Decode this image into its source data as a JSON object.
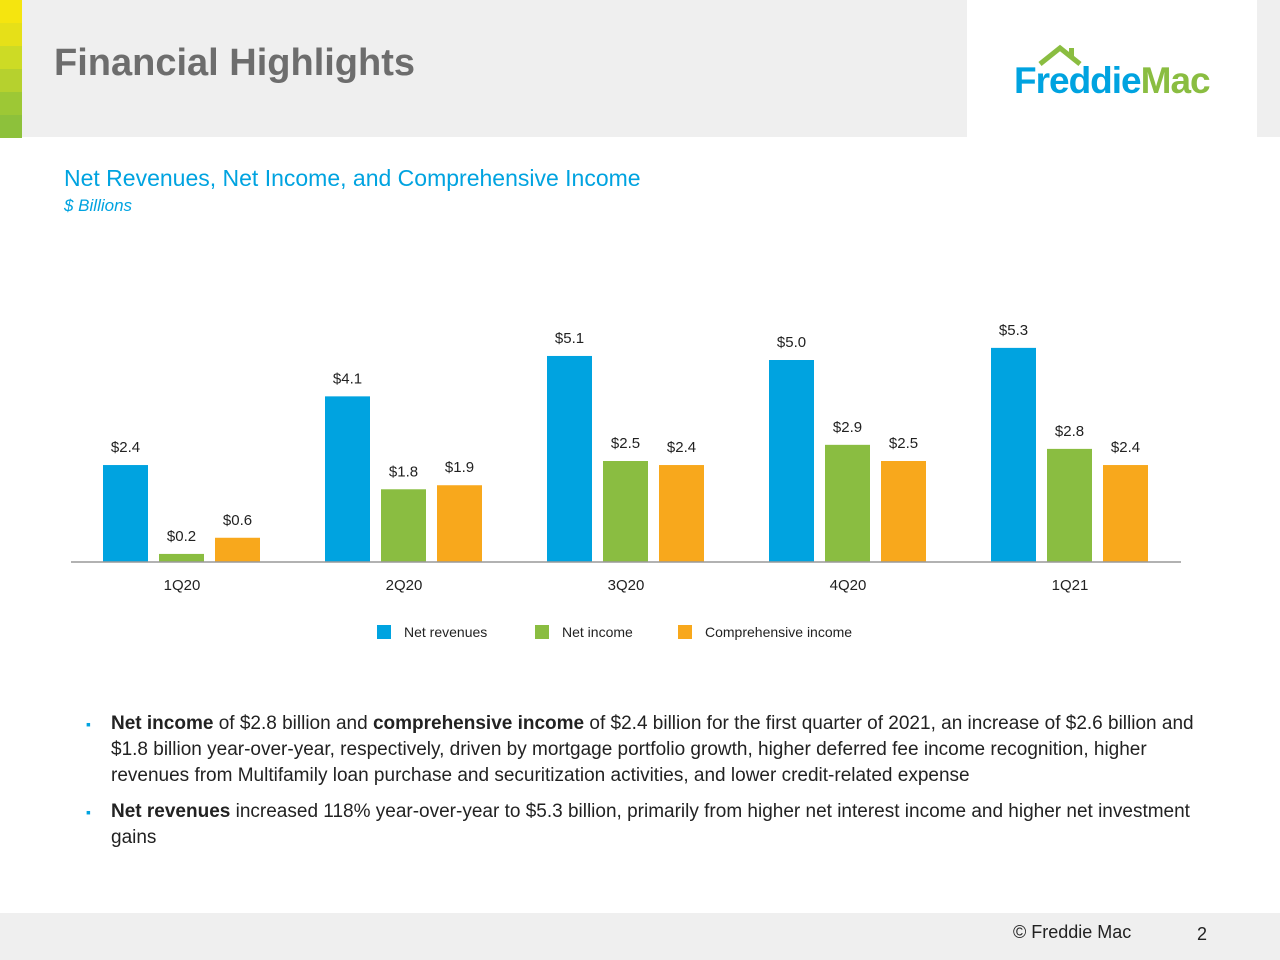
{
  "header": {
    "title": "Financial Highlights",
    "logo": {
      "part1": "Freddie",
      "part2": "Mac"
    },
    "stripe_colors": [
      "#f5e50f",
      "#e6e018",
      "#cddb25",
      "#b6d12e",
      "#9dc835",
      "#8dc13b"
    ]
  },
  "colors": {
    "net_revenues": "#00a3e0",
    "net_income": "#8abd41",
    "comprehensive_income": "#f8a81c",
    "accent": "#00a3e0"
  },
  "chart_data": {
    "type": "bar",
    "title": "Net Revenues, Net Income, and Comprehensive Income",
    "subtitle": "$ Billions",
    "categories": [
      "1Q20",
      "2Q20",
      "3Q20",
      "4Q20",
      "1Q21"
    ],
    "series": [
      {
        "name": "Net revenues",
        "values": [
          2.4,
          4.1,
          5.1,
          5.0,
          5.3
        ],
        "labels": [
          "$2.4",
          "$4.1",
          "$5.1",
          "$5.0",
          "$5.3"
        ]
      },
      {
        "name": "Net income",
        "values": [
          0.2,
          1.8,
          2.5,
          2.9,
          2.8
        ],
        "labels": [
          "$0.2",
          "$1.8",
          "$2.5",
          "$2.9",
          "$2.8"
        ]
      },
      {
        "name": "Comprehensive income",
        "values": [
          0.6,
          1.9,
          2.4,
          2.5,
          2.4
        ],
        "labels": [
          "$0.6",
          "$1.9",
          "$2.4",
          "$2.5",
          "$2.4"
        ]
      }
    ],
    "ylim": [
      0,
      5.5
    ],
    "grid": false,
    "legend": "bottom"
  },
  "bullets": [
    {
      "parts": [
        {
          "b": true,
          "t": "Net income"
        },
        {
          "b": false,
          "t": " of $2.8 billion and "
        },
        {
          "b": true,
          "t": "comprehensive income"
        },
        {
          "b": false,
          "t": " of $2.4 billion for the first quarter of 2021, an increase of $2.6 billion and $1.8 billion year-over-year, respectively, driven by mortgage portfolio growth, higher deferred fee income recognition, higher revenues from Multifamily loan purchase and securitization activities, and lower credit-related expense"
        }
      ]
    },
    {
      "parts": [
        {
          "b": true,
          "t": "Net revenues"
        },
        {
          "b": false,
          "t": " increased 118% year-over-year to $5.3 billion, primarily from higher net interest income and higher net investment gains"
        }
      ]
    }
  ],
  "footer": {
    "copyright": "©  Freddie Mac",
    "page": "2"
  }
}
